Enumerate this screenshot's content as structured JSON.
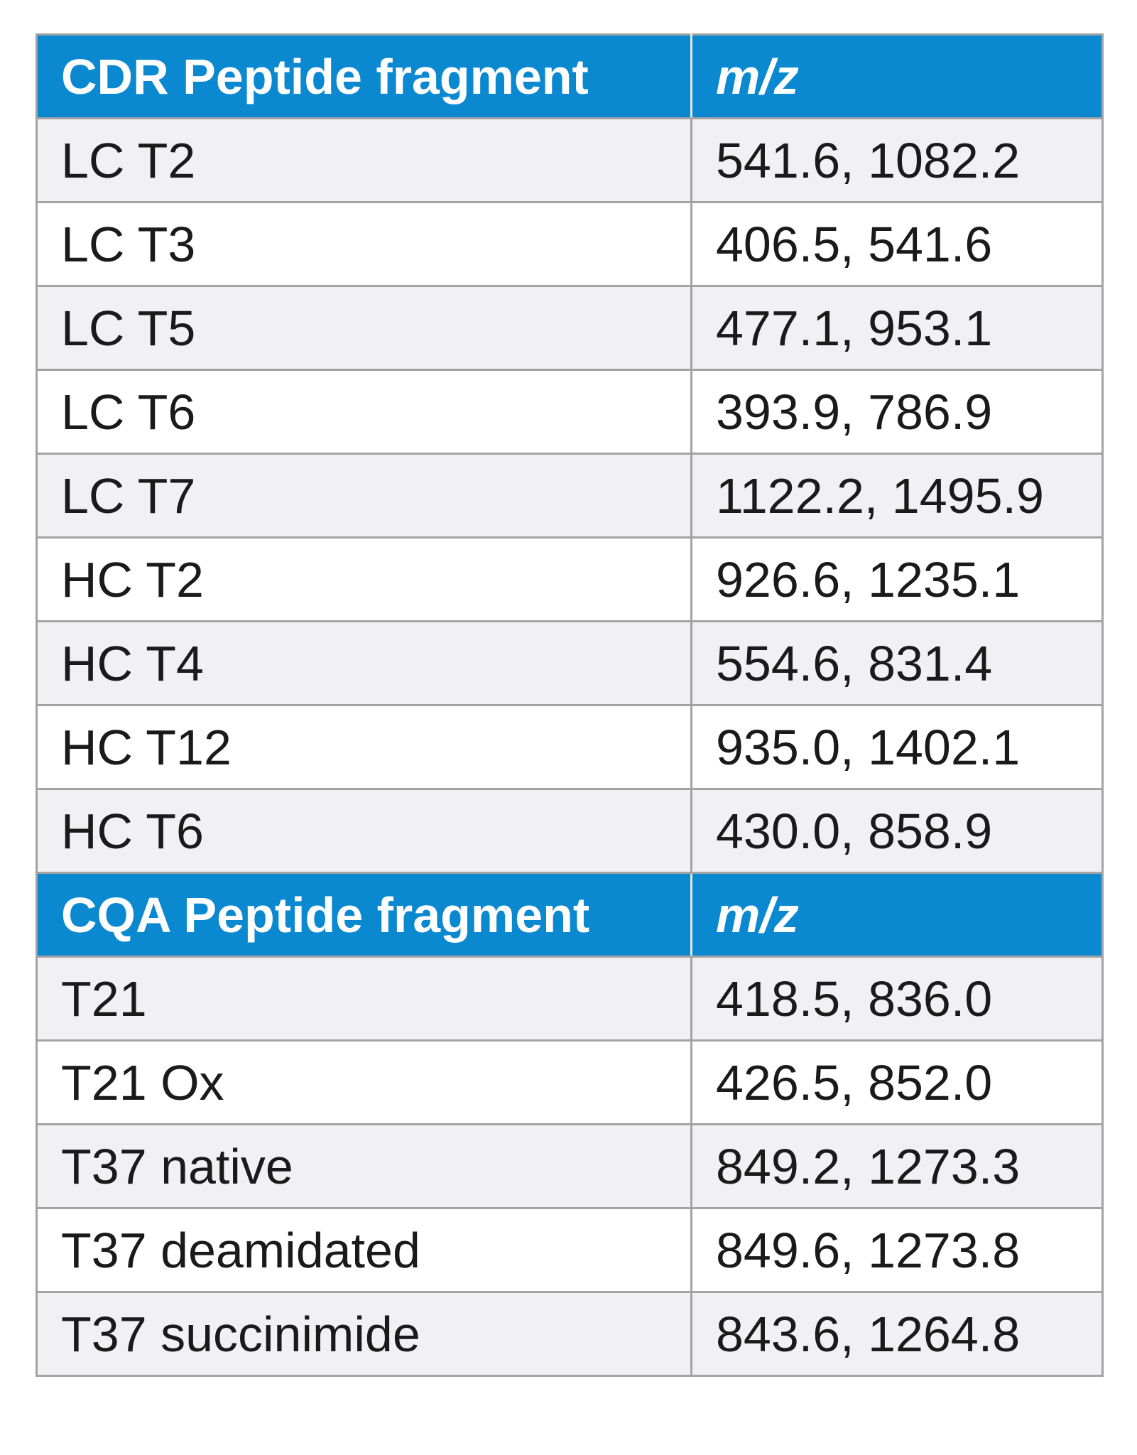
{
  "table": {
    "sections": [
      {
        "header": [
          "CDR Peptide fragment",
          "m/z"
        ],
        "rows": [
          [
            "LC T2",
            "541.6, 1082.2"
          ],
          [
            "LC T3",
            "406.5, 541.6"
          ],
          [
            "LC T5",
            "477.1, 953.1"
          ],
          [
            "LC T6",
            "393.9, 786.9"
          ],
          [
            "LC T7",
            "1122.2, 1495.9"
          ],
          [
            "HC T2",
            "926.6, 1235.1"
          ],
          [
            "HC T4",
            "554.6, 831.4"
          ],
          [
            "HC T12",
            "935.0, 1402.1"
          ],
          [
            "HC T6",
            "430.0, 858.9"
          ]
        ]
      },
      {
        "header": [
          "CQA Peptide fragment",
          "m/z"
        ],
        "rows": [
          [
            "T21",
            "418.5, 836.0"
          ],
          [
            "T21 Ox",
            "426.5, 852.0"
          ],
          [
            "T37 native",
            "849.2, 1273.3"
          ],
          [
            "T37 deamidated",
            "849.6, 1273.8"
          ],
          [
            "T37 succinimide",
            "843.6, 1264.8"
          ]
        ]
      }
    ]
  }
}
